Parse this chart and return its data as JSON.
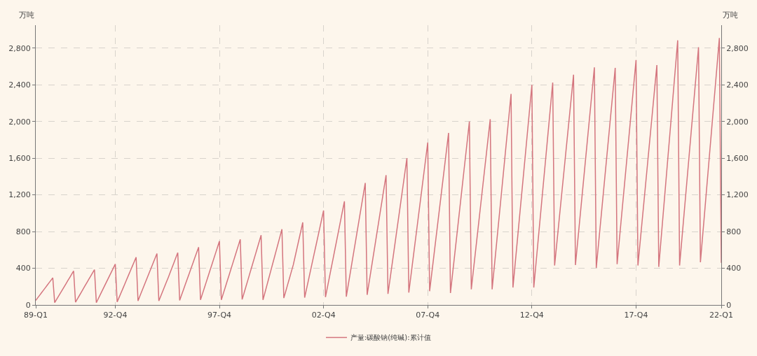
{
  "chart_data": {
    "type": "line",
    "ylabel": "万吨",
    "y2label": "万吨",
    "categories": [
      "89-Q1",
      null,
      null,
      null,
      null,
      null,
      null,
      null,
      null,
      null,
      null,
      null,
      null,
      null,
      null,
      null,
      null,
      null,
      null,
      null,
      null,
      null,
      null,
      null,
      null,
      null,
      null,
      null,
      null,
      null,
      null,
      null,
      null,
      null,
      null,
      null,
      null,
      null,
      null,
      null,
      null,
      null,
      "92-Q4",
      null,
      null,
      null,
      null,
      null,
      null,
      null,
      null,
      null,
      null,
      null,
      null,
      null,
      null,
      null,
      null,
      null,
      null,
      null,
      null,
      null,
      null,
      null,
      null,
      null,
      null,
      null,
      null,
      null,
      null,
      null,
      null,
      null,
      null,
      null,
      null,
      null,
      null,
      null,
      null,
      null,
      null,
      null,
      null,
      null,
      null,
      null,
      null,
      null,
      null,
      null,
      null,
      null,
      null,
      "97-Q4",
      null,
      null,
      null,
      null,
      null,
      null,
      null,
      null,
      null,
      null,
      null,
      null,
      null,
      null,
      null,
      null,
      null,
      null,
      null,
      null,
      null,
      null,
      null,
      null,
      null,
      null,
      null,
      null,
      null,
      null,
      null,
      null,
      null,
      null,
      null,
      null,
      null,
      null,
      null,
      null,
      null,
      null,
      null,
      null,
      null,
      null,
      null,
      null,
      null,
      null,
      null,
      null,
      null,
      null,
      "02-Q4",
      null,
      null,
      null,
      null,
      null,
      null,
      null,
      null,
      null,
      null,
      null,
      null,
      null,
      null,
      null,
      null,
      null,
      null,
      null,
      null,
      null,
      null,
      null,
      null,
      null,
      null,
      null,
      null,
      null,
      null,
      null,
      null,
      null,
      null,
      null,
      null,
      null,
      null,
      null,
      null,
      null,
      null,
      null,
      null,
      null,
      null,
      null,
      null,
      null,
      null,
      null,
      null,
      null,
      null,
      "07-Q4",
      null,
      null,
      null,
      null,
      null,
      null,
      null,
      null,
      null,
      null,
      null,
      null,
      null,
      null,
      null,
      null,
      null,
      null,
      null,
      null,
      null,
      null,
      null,
      null,
      null,
      null,
      null,
      null,
      null,
      null,
      null,
      null,
      null,
      null,
      null,
      null,
      null,
      null,
      null,
      null,
      null,
      null,
      null,
      null,
      null,
      null,
      null,
      null,
      null,
      null,
      null,
      null,
      null,
      null,
      "12-Q4",
      null,
      null,
      null,
      null,
      null,
      null,
      null,
      null,
      null,
      null,
      null,
      null,
      null,
      null,
      null,
      null,
      null,
      null,
      null,
      null,
      null,
      null,
      null,
      null,
      null,
      null,
      null,
      null,
      null,
      null,
      null,
      null,
      null,
      null,
      null,
      null,
      null,
      null,
      null,
      null,
      null,
      null,
      null,
      null,
      null,
      null,
      null,
      null,
      null,
      null,
      null,
      null,
      null,
      null,
      "17-Q4",
      null,
      null,
      null,
      null,
      null,
      null,
      null,
      null,
      null,
      null,
      null,
      null,
      null,
      null,
      null,
      null,
      null,
      null,
      null,
      null,
      null,
      null,
      null,
      null,
      null,
      null,
      null,
      null,
      null,
      null,
      null,
      null,
      null,
      null,
      null,
      null,
      null,
      null,
      null,
      null,
      null,
      null,
      null,
      null,
      "22-Q1"
    ],
    "series": [
      {
        "name": "产量:碳酸钠(纯碱):累计值",
        "color": "#d4757e",
        "values": [
          50,
          77,
          104,
          132,
          159,
          186,
          213,
          241,
          268,
          295,
          25,
          60,
          94,
          129,
          163,
          198,
          232,
          267,
          301,
          336,
          370,
          30,
          66,
          101,
          137,
          172,
          208,
          243,
          279,
          314,
          350,
          385,
          25,
          67,
          109,
          151,
          193,
          235,
          277,
          319,
          361,
          403,
          445,
          32,
          81,
          130,
          178,
          227,
          276,
          325,
          374,
          422,
          471,
          520,
          45,
          97,
          148,
          200,
          251,
          303,
          354,
          406,
          457,
          509,
          560,
          45,
          96,
          147,
          198,
          249,
          300,
          354,
          408,
          462,
          516,
          570,
          50,
          108,
          166,
          224,
          282,
          340,
          398,
          456,
          514,
          572,
          630,
          55,
          119,
          183,
          247,
          311,
          375,
          439,
          503,
          567,
          631,
          695,
          55,
          121,
          187,
          253,
          319,
          385,
          451,
          517,
          583,
          649,
          715,
          60,
          130,
          200,
          270,
          340,
          410,
          480,
          550,
          620,
          690,
          760,
          55,
          132,
          209,
          286,
          363,
          440,
          517,
          594,
          671,
          748,
          825,
          75,
          147,
          220,
          292,
          365,
          437,
          530,
          622,
          715,
          807,
          900,
          80,
          175,
          270,
          365,
          460,
          555,
          650,
          745,
          840,
          935,
          1030,
          85,
          190,
          294,
          399,
          503,
          608,
          712,
          817,
          921,
          1026,
          1130,
          90,
          214,
          338,
          462,
          586,
          710,
          834,
          958,
          1082,
          1206,
          1330,
          110,
          241,
          371,
          502,
          632,
          763,
          893,
          1024,
          1154,
          1285,
          1415,
          120,
          268,
          416,
          564,
          712,
          860,
          1008,
          1156,
          1304,
          1452,
          1600,
          135,
          299,
          462,
          626,
          789,
          953,
          1116,
          1280,
          1443,
          1607,
          1770,
          150,
          323,
          495,
          668,
          840,
          1013,
          1185,
          1358,
          1530,
          1703,
          1875,
          130,
          317,
          504,
          691,
          878,
          1065,
          1252,
          1439,
          1626,
          1813,
          2000,
          170,
          356,
          541,
          727,
          912,
          1098,
          1283,
          1469,
          1654,
          1840,
          2025,
          170,
          383,
          596,
          809,
          1022,
          1235,
          1448,
          1661,
          1874,
          2087,
          2300,
          190,
          411,
          632,
          853,
          1074,
          1295,
          1516,
          1737,
          1958,
          2179,
          2400,
          190,
          414,
          637,
          861,
          1084,
          1308,
          1531,
          1755,
          1978,
          2202,
          2425,
          430,
          638,
          846,
          1054,
          1262,
          1470,
          1678,
          1886,
          2094,
          2302,
          2510,
          435,
          651,
          866,
          1082,
          1297,
          1513,
          1728,
          1944,
          2159,
          2375,
          2590,
          405,
          623,
          841,
          1059,
          1277,
          1495,
          1713,
          1931,
          2149,
          2367,
          2585,
          445,
          668,
          890,
          1113,
          1335,
          1558,
          1780,
          2003,
          2225,
          2448,
          2670,
          430,
          649,
          867,
          1086,
          1304,
          1523,
          1741,
          1960,
          2178,
          2397,
          2615,
          415,
          662,
          909,
          1156,
          1403,
          1650,
          1897,
          2144,
          2391,
          2638,
          2885,
          430,
          668,
          906,
          1144,
          1382,
          1620,
          1858,
          2096,
          2334,
          2572,
          2810,
          465,
          710,
          954,
          1199,
          1443,
          1688,
          1932,
          2177,
          2421,
          2666,
          2910,
          460
        ]
      }
    ],
    "ylim": [
      0,
      3050
    ],
    "yticks": [
      {
        "value": 0,
        "label": "0"
      },
      {
        "value": 400,
        "label": "400"
      },
      {
        "value": 800,
        "label": "800"
      },
      {
        "value": 1200,
        "label": "1,200"
      },
      {
        "value": 1600,
        "label": "1,600"
      },
      {
        "value": 2000,
        "label": "2,000"
      },
      {
        "value": 2400,
        "label": "2,400"
      },
      {
        "value": 2800,
        "label": "2,800"
      }
    ],
    "y2lim": [
      0,
      3050
    ],
    "y2ticks": [
      {
        "value": 0,
        "label": "0"
      },
      {
        "value": 400,
        "label": "400"
      },
      {
        "value": 800,
        "label": "800"
      },
      {
        "value": 1200,
        "label": "1,200"
      },
      {
        "value": 1600,
        "label": "1,600"
      },
      {
        "value": 2000,
        "label": "2,000"
      },
      {
        "value": 2400,
        "label": "2,400"
      },
      {
        "value": 2800,
        "label": "2,800"
      }
    ],
    "grid": true,
    "legend": "bottom",
    "marker": "none",
    "line_style": "solid"
  }
}
